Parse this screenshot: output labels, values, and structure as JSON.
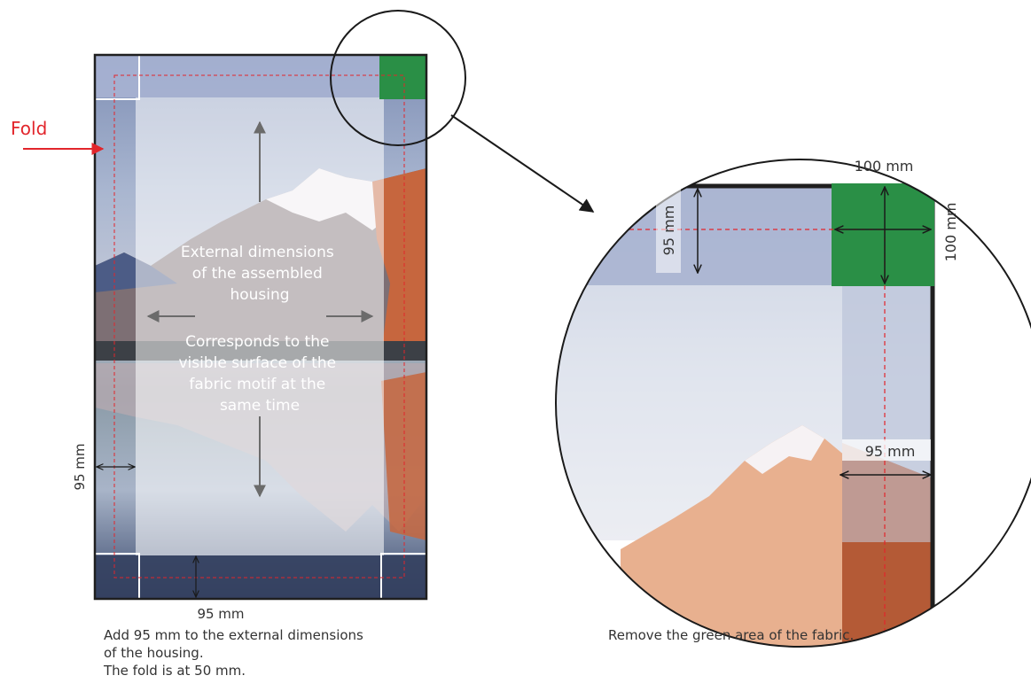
{
  "fold_label": "Fold",
  "main_panel": {
    "overlay_text_1": [
      "External dimensions",
      "of the assembled",
      "housing"
    ],
    "overlay_text_2": [
      "Corresponds to the",
      "visible surface of the",
      "fabric motif at the",
      "same time"
    ],
    "side_dimension": "95 mm",
    "bottom_dimension": "95 mm"
  },
  "caption_left": {
    "line_1": "Add 95 mm to the external dimensions",
    "line_2": "of the housing.",
    "line_3": "The fold is at 50 mm."
  },
  "zoom_detail": {
    "top_dimension": "100 mm",
    "right_dimension": "100 mm",
    "vertical_dimension": "95 mm",
    "horizontal_dimension": "95 mm"
  },
  "caption_right": "Remove the green area of the fabric.",
  "colors": {
    "cut_area_green": "#2a8f46",
    "fold_red": "#e2252b",
    "border_dark": "#1f1f1f"
  }
}
